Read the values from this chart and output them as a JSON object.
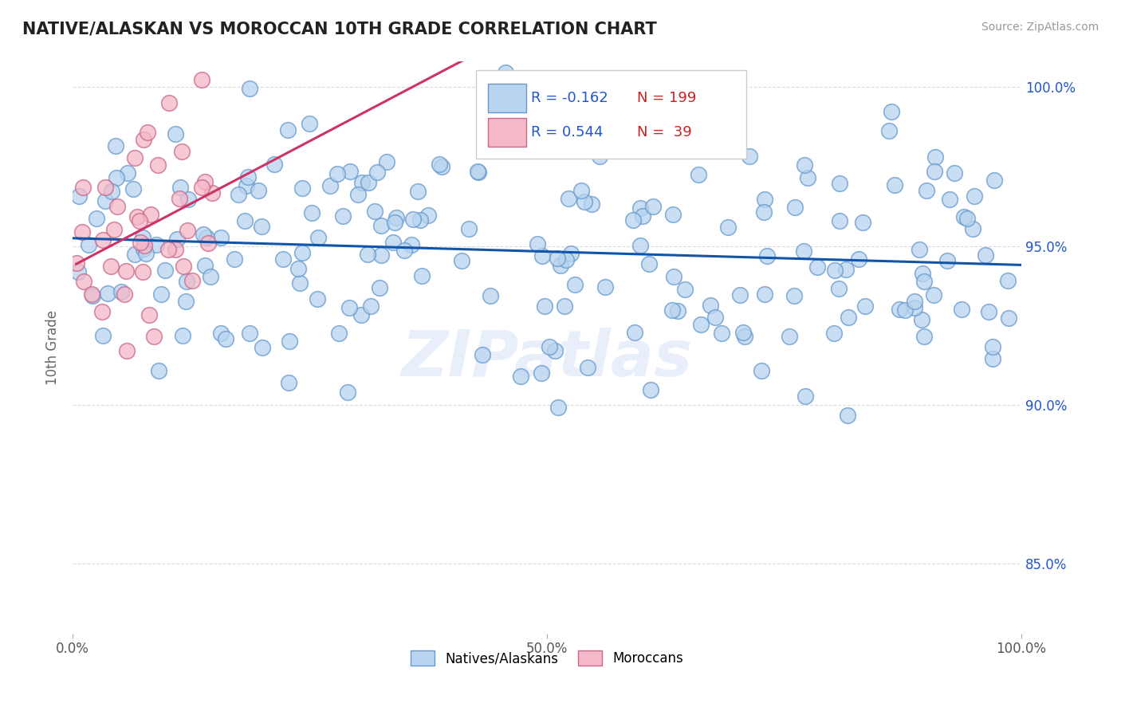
{
  "title": "NATIVE/ALASKAN VS MOROCCAN 10TH GRADE CORRELATION CHART",
  "source_text": "Source: ZipAtlas.com",
  "ylabel": "10th Grade",
  "x_min": 0.0,
  "x_max": 1.0,
  "y_min": 0.828,
  "y_max": 1.008,
  "y_ticks": [
    0.85,
    0.9,
    0.95,
    1.0
  ],
  "y_tick_labels": [
    "85.0%",
    "90.0%",
    "95.0%",
    "100.0%"
  ],
  "x_ticks": [
    0.0,
    0.5,
    1.0
  ],
  "x_tick_labels": [
    "0.0%",
    "50.0%",
    "100.0%"
  ],
  "blue_R": -0.162,
  "blue_N": 199,
  "pink_R": 0.544,
  "pink_N": 39,
  "blue_dot_color": "#b8d4f0",
  "blue_dot_edge": "#6699cc",
  "pink_dot_color": "#f4b8c8",
  "pink_dot_edge": "#cc6688",
  "blue_line_color": "#1155aa",
  "pink_line_color": "#cc3366",
  "legend_blue_label": "Natives/Alaskans",
  "legend_pink_label": "Moroccans",
  "watermark": "ZIPatlas",
  "background_color": "#ffffff",
  "grid_color": "#cccccc",
  "title_color": "#222222",
  "source_color": "#999999",
  "R_color": "#2255cc",
  "N_color": "#cc2222"
}
